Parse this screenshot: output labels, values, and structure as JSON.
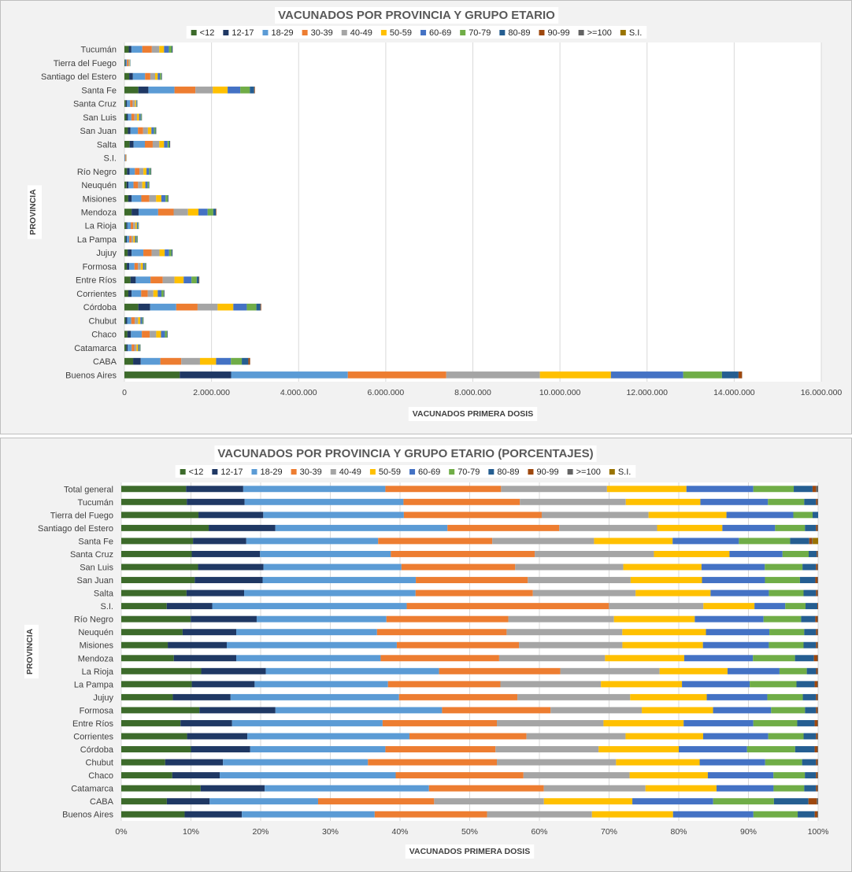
{
  "chart_data": [
    {
      "type": "bar",
      "orientation": "horizontal",
      "stacked": true,
      "title": "VACUNADOS POR PROVINCIA Y GRUPO ETARIO",
      "xlabel": "VACUNADOS PRIMERA  DOSIS",
      "ylabel": "PROVINCIA",
      "xlim": [
        0,
        16000000
      ],
      "xticks": [
        "0",
        "2.000.000",
        "4.000.000",
        "6.000.000",
        "8.000.000",
        "10.000.000",
        "12.000.000",
        "14.000.000",
        "16.000.000"
      ],
      "legend_position": "top",
      "groups": [
        "<12",
        "12-17",
        "18-29",
        "30-39",
        "40-49",
        "50-59",
        "60-69",
        "70-79",
        "80-89",
        "90-99",
        ">=100",
        "S.I."
      ],
      "categories": [
        "Tucumán",
        "Tierra del Fuego",
        "Santiago del Estero",
        "Santa Fe",
        "Santa Cruz",
        "San Luis",
        "San Juan",
        "Salta",
        "S.I.",
        "Río Negro",
        "Neuquén",
        "Misiones",
        "Mendoza",
        "La Rioja",
        "La Pampa",
        "Jujuy",
        "Formosa",
        "Entre Ríos",
        "Corrientes",
        "Córdoba",
        "Chubut",
        "Chaco",
        "Catamarca",
        "CABA",
        "Buenos Aires"
      ],
      "values": [
        [
          100000,
          60000,
          250000,
          220000,
          170000,
          110000,
          110000,
          65000,
          20000,
          4000,
          300,
          0
        ],
        [
          16000,
          13000,
          27000,
          33000,
          23000,
          12000,
          9000,
          3500,
          1500,
          300,
          20,
          0
        ],
        [
          110000,
          85000,
          280000,
          120000,
          110000,
          60000,
          50000,
          30000,
          14000,
          2500,
          200,
          0
        ],
        [
          320000,
          230000,
          600000,
          480000,
          400000,
          340000,
          290000,
          220000,
          100000,
          15000,
          500,
          0
        ],
        [
          32000,
          28000,
          70000,
          58000,
          52000,
          28000,
          18000,
          9000,
          4000,
          700,
          50,
          0
        ],
        [
          45000,
          35000,
          80000,
          70000,
          60000,
          48000,
          35000,
          20000,
          8000,
          1500,
          100,
          0
        ],
        [
          80000,
          60000,
          170000,
          120000,
          110000,
          80000,
          60000,
          35000,
          15000,
          2500,
          150,
          0
        ],
        [
          120000,
          90000,
          260000,
          180000,
          150000,
          110000,
          80000,
          40000,
          18000,
          2500,
          200,
          0
        ],
        [
          3500,
          3500,
          15000,
          15000,
          7000,
          4000,
          2000,
          1000,
          300,
          50,
          10,
          0
        ],
        [
          60000,
          60000,
          120000,
          105000,
          92000,
          70000,
          60000,
          35000,
          13000,
          2500,
          200,
          0
        ],
        [
          50000,
          44000,
          115000,
          105000,
          96000,
          70000,
          52000,
          28000,
          10000,
          1500,
          100,
          0
        ],
        [
          88000,
          80000,
          220000,
          185000,
          155000,
          120000,
          95000,
          50000,
          16000,
          2500,
          200,
          0
        ],
        [
          165000,
          160000,
          450000,
          355000,
          330000,
          240000,
          210000,
          130000,
          60000,
          12000,
          500,
          0
        ],
        [
          40000,
          28000,
          78000,
          55000,
          50000,
          34000,
          26000,
          14000,
          5000,
          900,
          50,
          0
        ],
        [
          32000,
          24000,
          55000,
          50000,
          45000,
          38000,
          30000,
          22000,
          9000,
          1500,
          100,
          0
        ],
        [
          75000,
          90000,
          270000,
          190000,
          180000,
          120000,
          100000,
          55000,
          22000,
          3500,
          250,
          0
        ],
        [
          55000,
          56000,
          120000,
          80000,
          65000,
          50000,
          40000,
          25000,
          11000,
          1500,
          100,
          0
        ],
        [
          140000,
          120000,
          340000,
          280000,
          270000,
          210000,
          180000,
          120000,
          50000,
          10000,
          400,
          0
        ],
        [
          90000,
          75000,
          220000,
          150000,
          130000,
          100000,
          85000,
          50000,
          17000,
          3000,
          200,
          0
        ],
        [
          320000,
          270000,
          600000,
          490000,
          460000,
          360000,
          310000,
          220000,
          95000,
          15000,
          800,
          0
        ],
        [
          28000,
          37000,
          92000,
          81000,
          75000,
          53000,
          41000,
          23000,
          9000,
          1500,
          150,
          0
        ],
        [
          70000,
          80000,
          250000,
          180000,
          150000,
          110000,
          90000,
          45000,
          15000,
          2500,
          200,
          0
        ],
        [
          42000,
          34000,
          90000,
          60000,
          52000,
          38000,
          30000,
          17000,
          7000,
          1000,
          80,
          0
        ],
        [
          200000,
          175000,
          450000,
          480000,
          430000,
          370000,
          340000,
          250000,
          150000,
          40000,
          1500,
          0
        ],
        [
          1270000,
          1180000,
          2680000,
          2260000,
          2150000,
          1630000,
          1660000,
          890000,
          380000,
          80000,
          4000,
          0
        ]
      ]
    },
    {
      "type": "bar",
      "orientation": "horizontal",
      "stacked": true,
      "normalized": true,
      "title": "VACUNADOS POR PROVINCIA Y GRUPO ETARIO (PORCENTAJES)",
      "xlabel": "VACUNADOS PRIMERA  DOSIS",
      "ylabel": "PROVINCIA",
      "xlim": [
        0,
        100
      ],
      "xticks": [
        "0%",
        "10%",
        "20%",
        "30%",
        "40%",
        "50%",
        "60%",
        "70%",
        "80%",
        "90%",
        "100%"
      ],
      "legend_position": "top",
      "groups": [
        "<12",
        "12-17",
        "18-29",
        "30-39",
        "40-49",
        "50-59",
        "60-69",
        "70-79",
        "80-89",
        "90-99",
        ">=100",
        "S.I."
      ],
      "categories": [
        "Total general",
        "Tucumán",
        "Tierra del Fuego",
        "Santiago del Estero",
        "Santa Fe",
        "Santa Cruz",
        "San Luis",
        "San Juan",
        "Salta",
        "S.I.",
        "Río Negro",
        "Neuquén",
        "Misiones",
        "Mendoza",
        "La Rioja",
        "La Pampa",
        "Jujuy",
        "Formosa",
        "Entre Ríos",
        "Corrientes",
        "Córdoba",
        "Chubut",
        "Chaco",
        "Catamarca",
        "CABA",
        "Buenos Aires"
      ],
      "values": [
        [
          9.3,
          8.2,
          20.4,
          16.6,
          15.2,
          11.4,
          9.6,
          5.8,
          2.7,
          0.5,
          0.3,
          0
        ],
        [
          9.4,
          8.3,
          22.8,
          16.7,
          15.2,
          10.7,
          9.7,
          5.2,
          1.7,
          0.2,
          0.1,
          0
        ],
        [
          11.2,
          9.4,
          20.4,
          20.0,
          15.5,
          11.3,
          9.7,
          2.8,
          0.8,
          0,
          0,
          0
        ],
        [
          12.6,
          9.6,
          24.8,
          16.1,
          14.1,
          9.4,
          7.6,
          4.3,
          1.6,
          0.2,
          0.1,
          0
        ],
        [
          10.5,
          7.8,
          19.3,
          16.7,
          14.9,
          11.5,
          9.7,
          7.5,
          2.8,
          0.4,
          0.1,
          0.8
        ],
        [
          9.7,
          9.4,
          18.0,
          19.8,
          16.4,
          10.4,
          7.3,
          3.6,
          1.1,
          0.1,
          0.1,
          0
        ],
        [
          10.8,
          9.2,
          19.4,
          16.0,
          15.2,
          11.0,
          8.9,
          5.3,
          1.9,
          0.2,
          0.1,
          0
        ],
        [
          10.5,
          9.7,
          21.9,
          16.0,
          14.7,
          10.2,
          9.0,
          5.0,
          2.2,
          0.3,
          0.1,
          0
        ],
        [
          9.4,
          8.3,
          24.7,
          16.9,
          14.8,
          10.8,
          8.4,
          5.0,
          1.8,
          0.2,
          0.1,
          0
        ],
        [
          6.5,
          6.5,
          27.8,
          28.9,
          13.5,
          7.3,
          4.4,
          2.9,
          1.7,
          0.1,
          0,
          0
        ],
        [
          9.8,
          9.3,
          18.3,
          17.2,
          14.9,
          11.4,
          9.7,
          5.3,
          2.0,
          0.3,
          0.1,
          0
        ],
        [
          8.8,
          7.7,
          20.2,
          18.6,
          16.6,
          12.0,
          9.1,
          5.0,
          1.7,
          0.2,
          0.1,
          0
        ],
        [
          6.7,
          8.5,
          24.5,
          17.6,
          14.9,
          11.6,
          9.5,
          5.0,
          1.8,
          0.2,
          0.1,
          0
        ],
        [
          7.5,
          8.9,
          20.6,
          16.9,
          15.1,
          11.3,
          9.8,
          6.0,
          2.7,
          0.5,
          0.1,
          0
        ],
        [
          12.0,
          9.7,
          26.0,
          18.2,
          14.9,
          10.2,
          7.8,
          4.1,
          1.4,
          0.2,
          0.1,
          0
        ],
        [
          10.1,
          9.0,
          19.1,
          16.1,
          14.4,
          11.6,
          9.7,
          6.7,
          2.6,
          0.4,
          0.1,
          0
        ],
        [
          7.4,
          8.3,
          24.2,
          17.0,
          16.2,
          11.0,
          8.7,
          5.1,
          1.9,
          0.2,
          0.1,
          0
        ],
        [
          11.3,
          11.0,
          24.1,
          15.7,
          13.2,
          10.3,
          8.4,
          4.9,
          1.6,
          0.2,
          0.1,
          0
        ],
        [
          8.5,
          7.4,
          21.6,
          16.4,
          15.3,
          11.5,
          10.0,
          6.3,
          2.5,
          0.4,
          0.1,
          0
        ],
        [
          9.5,
          8.7,
          23.4,
          16.9,
          14.3,
          11.2,
          9.4,
          5.1,
          1.8,
          0.2,
          0.1,
          0
        ],
        [
          10.0,
          8.5,
          19.4,
          15.8,
          14.8,
          11.5,
          9.8,
          6.9,
          2.8,
          0.4,
          0.1,
          0
        ],
        [
          6.3,
          8.3,
          20.8,
          18.5,
          17.1,
          12.0,
          9.4,
          5.3,
          2.0,
          0.2,
          0.1,
          0
        ],
        [
          7.3,
          6.8,
          25.2,
          18.3,
          15.2,
          11.2,
          9.4,
          4.5,
          1.6,
          0.2,
          0.1,
          0
        ],
        [
          11.4,
          9.2,
          23.6,
          16.5,
          14.6,
          10.2,
          8.2,
          4.4,
          1.7,
          0.2,
          0.1,
          0
        ],
        [
          6.6,
          6.2,
          15.7,
          16.8,
          15.9,
          12.8,
          11.7,
          8.8,
          5.0,
          1.2,
          0.2,
          0
        ],
        [
          9.3,
          8.4,
          19.5,
          16.5,
          15.4,
          11.9,
          11.8,
          6.5,
          2.5,
          0.4,
          0.1,
          0
        ]
      ]
    }
  ],
  "colors": [
    "#3d6b2b",
    "#1f3864",
    "#5b9bd5",
    "#ed7d31",
    "#a5a5a5",
    "#ffc000",
    "#4472c4",
    "#70ad47",
    "#255e91",
    "#9e480e",
    "#636363",
    "#997300"
  ],
  "panel_background": "#f2f2f2",
  "plot_background": "#ffffff",
  "gridline_color": "#d9d9d9"
}
